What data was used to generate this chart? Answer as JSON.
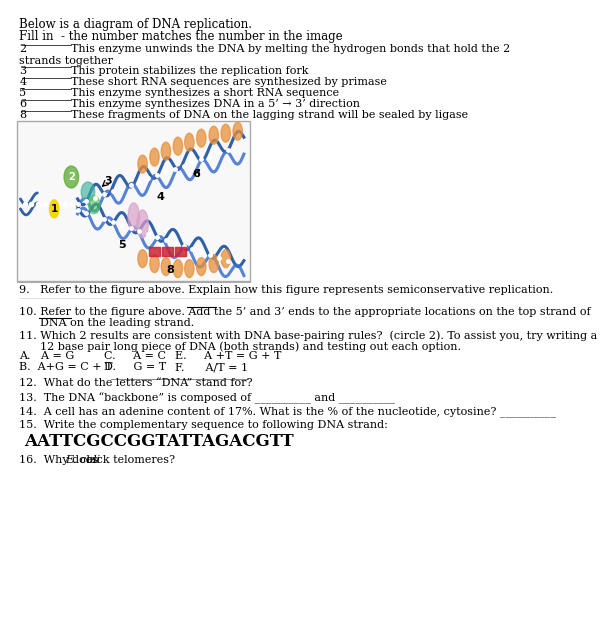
{
  "title_line1": "Below is a diagram of DNA replication.",
  "title_line2": "Fill in  - the number matches the number in the image",
  "fill_items": [
    {
      "num": "2",
      "text1": "This enzyme unwinds the DNA by melting the hydrogen bonds that hold the 2",
      "text2": "strands together"
    },
    {
      "num": "3",
      "text1": "This protein stabilizes the replication fork",
      "text2": ""
    },
    {
      "num": "4",
      "text1": "These short RNA sequences are synthesized by primase",
      "text2": ""
    },
    {
      "num": "5",
      "text1": "This enzyme synthesizes a short RNA sequence",
      "text2": ""
    },
    {
      "num": "6",
      "text1": "This enzyme synthesizes DNA in a 5’ → 3’ direction",
      "text2": ""
    },
    {
      "num": "8",
      "text1": "These fragments of DNA on the lagging strand will be sealed by ligase",
      "text2": ""
    }
  ],
  "question9": "9.   Refer to the figure above. Explain how this figure represents semiconservative replication.",
  "question10_line1": "10. Refer to the figure above. Add the 5’ and 3’ ends to the appropriate locations on the top strand of",
  "question10_line2": "      DNA on the leading strand.",
  "question11_line1": "11. Which 2 results are consistent with DNA base-pairing rules?  (circle 2). To assist you, try writing a",
  "question11_line2": "      12 base pair long piece of DNA (both strands) and testing out each option.",
  "answers_col1": [
    "A.   A = G",
    "B.  A+G = C + T"
  ],
  "answers_col2": [
    "C.     A = C",
    "D.     G = T"
  ],
  "answers_col3": [
    "E.     A +T = G + T",
    "F.      A/T = 1"
  ],
  "question12": "12.  What do the letters “DNA” stand for?",
  "question13": "13.  The DNA “backbone” is composed of __________ and __________",
  "question14": "14.  A cell has an adenine content of 17%. What is the % of the nucleotide, cytosine? __________",
  "question15_line1": "15.  Write the complementary sequence to following DNA strand:",
  "question15_seq": "AATTCGCCGGTATTAGACGTT",
  "question16_prefix": "16.  Why does ",
  "question16_italic": "E. coli",
  "question16_suffix": " lack telomeres?",
  "bg_color": "#ffffff",
  "text_color": "#000000",
  "font_size_title": 8.5,
  "font_size_body": 8.0,
  "font_size_seq": 12.0,
  "underline_color": "#444444",
  "box_edge_color": "#aaaaaa",
  "box_face_color": "#f8f8f8"
}
